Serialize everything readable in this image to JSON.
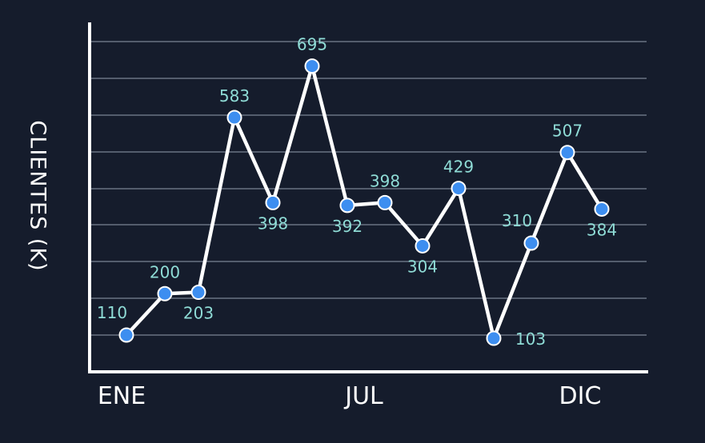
{
  "chart_data": {
    "type": "line",
    "ylabel": "CLIENTES (K)",
    "xlabel": "",
    "x_tick_labels": [
      {
        "index": 0,
        "label": "ENE"
      },
      {
        "index": 6,
        "label": "JUL"
      },
      {
        "index": 13,
        "label": "DIC"
      }
    ],
    "ylim": [
      30,
      790
    ],
    "grid": true,
    "values": [
      110,
      200,
      203,
      583,
      398,
      695,
      392,
      398,
      304,
      429,
      103,
      310,
      507,
      384
    ],
    "display_values": [
      110,
      200,
      203,
      583,
      398,
      695,
      392,
      398,
      304,
      429,
      103,
      310,
      507,
      384
    ],
    "label_position": [
      "left",
      "above",
      "below",
      "above",
      "below",
      "above",
      "below",
      "above",
      "below",
      "above",
      "right",
      "left",
      "above",
      "below"
    ],
    "colors": {
      "background": "#151c2c",
      "line": "#ffffff",
      "marker": "#3d8ef0",
      "data_label": "#8fdcd6",
      "grid": "#7b8494",
      "axis": "#ffffff"
    }
  }
}
